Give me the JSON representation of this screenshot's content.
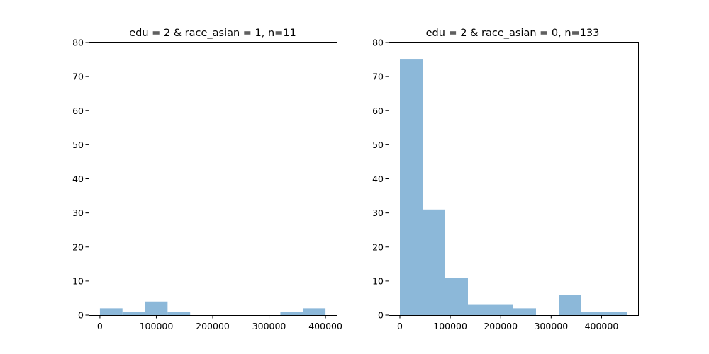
{
  "chart_data": [
    {
      "type": "bar",
      "title": "edu = 2 & race_asian = 1, n=11",
      "xlabel": "",
      "ylabel": "",
      "xlim": [
        -20000,
        420000
      ],
      "ylim": [
        0,
        80
      ],
      "x_ticks": [
        0,
        100000,
        200000,
        300000,
        400000
      ],
      "x_tick_labels": [
        "0",
        "100000",
        "200000",
        "300000",
        "400000"
      ],
      "y_ticks": [
        0,
        10,
        20,
        30,
        40,
        50,
        60,
        70,
        80
      ],
      "y_tick_labels": [
        "0",
        "10",
        "20",
        "30",
        "40",
        "50",
        "60",
        "70",
        "80"
      ],
      "bin_edges": [
        0,
        40000,
        80000,
        120000,
        160000,
        200000,
        240000,
        280000,
        320000,
        360000,
        400000
      ],
      "values": [
        2,
        1,
        4,
        1,
        0,
        0,
        0,
        0,
        1,
        2
      ],
      "color": "#8cb8d9",
      "grid": false
    },
    {
      "type": "bar",
      "title": "edu = 2 & race_asian = 0, n=133",
      "xlabel": "",
      "ylabel": "",
      "xlim": [
        -22500,
        472500
      ],
      "ylim": [
        0,
        80
      ],
      "x_ticks": [
        0,
        100000,
        200000,
        300000,
        400000
      ],
      "x_tick_labels": [
        "0",
        "100000",
        "200000",
        "300000",
        "400000"
      ],
      "y_ticks": [
        0,
        10,
        20,
        30,
        40,
        50,
        60,
        70,
        80
      ],
      "y_tick_labels": [
        "0",
        "10",
        "20",
        "30",
        "40",
        "50",
        "60",
        "70",
        "80"
      ],
      "bin_edges": [
        0,
        45000,
        90000,
        135000,
        180000,
        225000,
        270000,
        315000,
        360000,
        405000,
        450000
      ],
      "values": [
        75,
        31,
        11,
        3,
        3,
        2,
        0,
        6,
        1,
        1
      ],
      "color": "#8cb8d9",
      "grid": false
    }
  ]
}
